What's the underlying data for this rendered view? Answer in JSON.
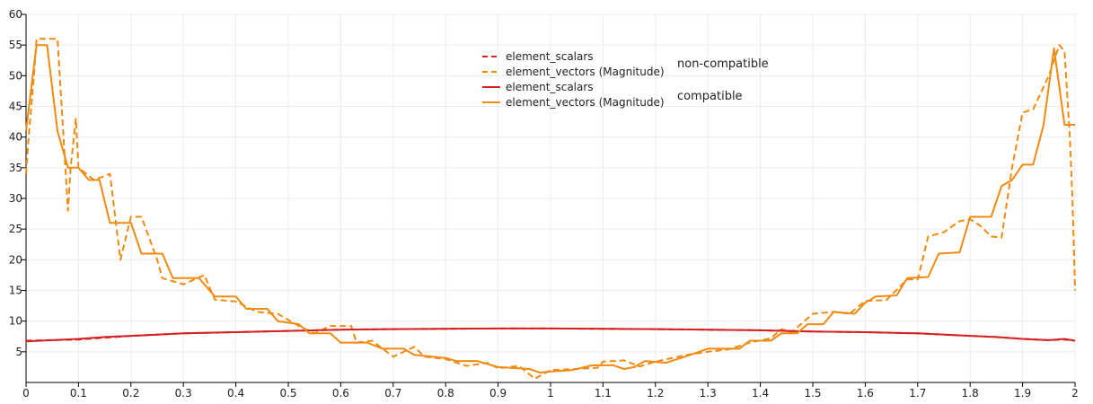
{
  "chart_data": {
    "type": "line",
    "xlim": [
      0,
      2
    ],
    "ylim": [
      0,
      60
    ],
    "x_ticks": [
      "0",
      "0.1",
      "0.2",
      "0.3",
      "0.4",
      "0.5",
      "0.6",
      "0.7",
      "0.8",
      "0.9",
      "1",
      "1.1",
      "1.2",
      "1.3",
      "1.4",
      "1.5",
      "1.6",
      "1.7",
      "1.8",
      "1.9",
      "2"
    ],
    "y_ticks": [
      "5",
      "10",
      "15",
      "20",
      "25",
      "30",
      "35",
      "40",
      "45",
      "50",
      "55",
      "60"
    ],
    "grid": true,
    "legend_position": "top-center",
    "legend_groups": [
      {
        "label": "non-compatible",
        "entries": [
          "element_scalars",
          "element_vectors (Magnitude)"
        ]
      },
      {
        "label": "compatible",
        "entries": [
          "element_scalars",
          "element_vectors (Magnitude)"
        ]
      }
    ],
    "series": [
      {
        "name": "element_scalars",
        "group": "non-compatible",
        "color": "#e02020",
        "dash": true,
        "points": [
          [
            0,
            6.8
          ],
          [
            0.05,
            6.9
          ],
          [
            0.1,
            7.0
          ],
          [
            0.15,
            7.3
          ],
          [
            0.2,
            7.6
          ],
          [
            0.25,
            7.8
          ],
          [
            0.3,
            8.0
          ],
          [
            0.35,
            8.1
          ],
          [
            0.4,
            8.2
          ],
          [
            0.45,
            8.3
          ],
          [
            0.5,
            8.4
          ],
          [
            0.6,
            8.6
          ],
          [
            0.7,
            8.7
          ],
          [
            0.8,
            8.75
          ],
          [
            0.9,
            8.8
          ],
          [
            1.0,
            8.8
          ],
          [
            1.1,
            8.75
          ],
          [
            1.2,
            8.7
          ],
          [
            1.3,
            8.6
          ],
          [
            1.4,
            8.5
          ],
          [
            1.5,
            8.3
          ],
          [
            1.6,
            8.2
          ],
          [
            1.7,
            8.0
          ],
          [
            1.8,
            7.6
          ],
          [
            1.85,
            7.4
          ],
          [
            1.9,
            7.1
          ],
          [
            1.95,
            6.9
          ],
          [
            1.98,
            7.0
          ],
          [
            2.0,
            6.8
          ]
        ]
      },
      {
        "name": "element_vectors (Magnitude)",
        "group": "non-compatible",
        "color": "#f08a10",
        "dash": true,
        "points": [
          [
            0,
            34
          ],
          [
            0.005,
            40
          ],
          [
            0.015,
            50
          ],
          [
            0.02,
            56
          ],
          [
            0.06,
            56
          ],
          [
            0.07,
            42
          ],
          [
            0.08,
            28
          ],
          [
            0.085,
            35
          ],
          [
            0.095,
            43
          ],
          [
            0.1,
            35
          ],
          [
            0.13,
            33
          ],
          [
            0.16,
            34
          ],
          [
            0.18,
            20
          ],
          [
            0.2,
            27
          ],
          [
            0.22,
            27
          ],
          [
            0.25,
            20
          ],
          [
            0.26,
            17
          ],
          [
            0.3,
            16
          ],
          [
            0.34,
            17.5
          ],
          [
            0.36,
            13.5
          ],
          [
            0.4,
            13.2
          ],
          [
            0.44,
            11.5
          ],
          [
            0.48,
            11.2
          ],
          [
            0.52,
            9.2
          ],
          [
            0.55,
            8
          ],
          [
            0.58,
            9.2
          ],
          [
            0.62,
            9.2
          ],
          [
            0.63,
            6.5
          ],
          [
            0.66,
            6.8
          ],
          [
            0.7,
            4.2
          ],
          [
            0.74,
            5.8
          ],
          [
            0.76,
            4.2
          ],
          [
            0.8,
            3.8
          ],
          [
            0.84,
            2.7
          ],
          [
            0.88,
            3.2
          ],
          [
            0.9,
            2.3
          ],
          [
            0.94,
            2.7
          ],
          [
            0.97,
            0.6
          ],
          [
            1.0,
            2.0
          ],
          [
            1.05,
            2.2
          ],
          [
            1.09,
            2.4
          ],
          [
            1.1,
            3.4
          ],
          [
            1.14,
            3.6
          ],
          [
            1.17,
            2.6
          ],
          [
            1.2,
            3.4
          ],
          [
            1.26,
            4.5
          ],
          [
            1.3,
            5.0
          ],
          [
            1.34,
            5.4
          ],
          [
            1.38,
            6.5
          ],
          [
            1.42,
            7.2
          ],
          [
            1.44,
            8.7
          ],
          [
            1.46,
            8.2
          ],
          [
            1.5,
            11.2
          ],
          [
            1.54,
            11.5
          ],
          [
            1.57,
            11.2
          ],
          [
            1.6,
            13.3
          ],
          [
            1.64,
            13.4
          ],
          [
            1.68,
            16.8
          ],
          [
            1.7,
            16.8
          ],
          [
            1.72,
            23.8
          ],
          [
            1.75,
            24.5
          ],
          [
            1.78,
            26.3
          ],
          [
            1.8,
            26.6
          ],
          [
            1.82,
            25.5
          ],
          [
            1.84,
            23.8
          ],
          [
            1.86,
            23.6
          ],
          [
            1.88,
            35
          ],
          [
            1.9,
            44
          ],
          [
            1.92,
            44.5
          ],
          [
            1.95,
            50
          ],
          [
            1.97,
            55
          ],
          [
            1.98,
            54
          ],
          [
            1.99,
            40
          ],
          [
            1.995,
            30
          ],
          [
            2.0,
            15
          ]
        ]
      },
      {
        "name": "element_scalars",
        "group": "compatible",
        "color": "#d42020",
        "dash": false,
        "points": [
          [
            0,
            6.7
          ],
          [
            0.05,
            6.9
          ],
          [
            0.1,
            7.1
          ],
          [
            0.15,
            7.4
          ],
          [
            0.2,
            7.6
          ],
          [
            0.25,
            7.8
          ],
          [
            0.3,
            8.0
          ],
          [
            0.35,
            8.1
          ],
          [
            0.4,
            8.2
          ],
          [
            0.45,
            8.3
          ],
          [
            0.5,
            8.4
          ],
          [
            0.6,
            8.6
          ],
          [
            0.7,
            8.7
          ],
          [
            0.8,
            8.75
          ],
          [
            0.9,
            8.8
          ],
          [
            1.0,
            8.8
          ],
          [
            1.1,
            8.75
          ],
          [
            1.2,
            8.7
          ],
          [
            1.3,
            8.6
          ],
          [
            1.4,
            8.5
          ],
          [
            1.5,
            8.3
          ],
          [
            1.6,
            8.2
          ],
          [
            1.7,
            8.0
          ],
          [
            1.8,
            7.6
          ],
          [
            1.85,
            7.4
          ],
          [
            1.9,
            7.1
          ],
          [
            1.95,
            6.9
          ],
          [
            1.98,
            7.1
          ],
          [
            2.0,
            6.8
          ]
        ]
      },
      {
        "name": "element_vectors (Magnitude)",
        "group": "compatible",
        "color": "#f08a10",
        "dash": false,
        "points": [
          [
            0,
            41
          ],
          [
            0.01,
            48
          ],
          [
            0.02,
            55
          ],
          [
            0.04,
            55
          ],
          [
            0.06,
            41
          ],
          [
            0.08,
            35
          ],
          [
            0.1,
            35
          ],
          [
            0.12,
            33
          ],
          [
            0.14,
            33
          ],
          [
            0.16,
            26
          ],
          [
            0.18,
            26
          ],
          [
            0.2,
            26
          ],
          [
            0.22,
            21
          ],
          [
            0.26,
            21
          ],
          [
            0.28,
            17
          ],
          [
            0.33,
            17
          ],
          [
            0.36,
            14
          ],
          [
            0.4,
            14
          ],
          [
            0.42,
            12
          ],
          [
            0.46,
            12
          ],
          [
            0.48,
            10
          ],
          [
            0.52,
            9.5
          ],
          [
            0.54,
            8
          ],
          [
            0.58,
            8
          ],
          [
            0.6,
            6.5
          ],
          [
            0.65,
            6.5
          ],
          [
            0.68,
            5.5
          ],
          [
            0.72,
            5.5
          ],
          [
            0.74,
            4.5
          ],
          [
            0.8,
            4
          ],
          [
            0.82,
            3.5
          ],
          [
            0.86,
            3.5
          ],
          [
            0.88,
            3
          ],
          [
            0.9,
            2.5
          ],
          [
            0.96,
            2.2
          ],
          [
            0.98,
            1.6
          ],
          [
            1.0,
            1.8
          ],
          [
            1.04,
            2.0
          ],
          [
            1.08,
            2.8
          ],
          [
            1.12,
            2.8
          ],
          [
            1.14,
            2.2
          ],
          [
            1.16,
            2.5
          ],
          [
            1.18,
            3.5
          ],
          [
            1.22,
            3.2
          ],
          [
            1.26,
            4.3
          ],
          [
            1.3,
            5.5
          ],
          [
            1.36,
            5.5
          ],
          [
            1.38,
            6.8
          ],
          [
            1.42,
            6.8
          ],
          [
            1.44,
            8
          ],
          [
            1.47,
            8
          ],
          [
            1.49,
            9.5
          ],
          [
            1.52,
            9.5
          ],
          [
            1.54,
            11.5
          ],
          [
            1.58,
            11.2
          ],
          [
            1.6,
            13
          ],
          [
            1.62,
            14
          ],
          [
            1.66,
            14.2
          ],
          [
            1.68,
            17
          ],
          [
            1.72,
            17.2
          ],
          [
            1.74,
            21
          ],
          [
            1.78,
            21.2
          ],
          [
            1.8,
            27
          ],
          [
            1.84,
            27
          ],
          [
            1.86,
            32
          ],
          [
            1.88,
            33
          ],
          [
            1.9,
            35.5
          ],
          [
            1.92,
            35.5
          ],
          [
            1.94,
            42
          ],
          [
            1.96,
            54.5
          ],
          [
            1.98,
            42
          ],
          [
            2.0,
            42
          ]
        ]
      }
    ]
  }
}
